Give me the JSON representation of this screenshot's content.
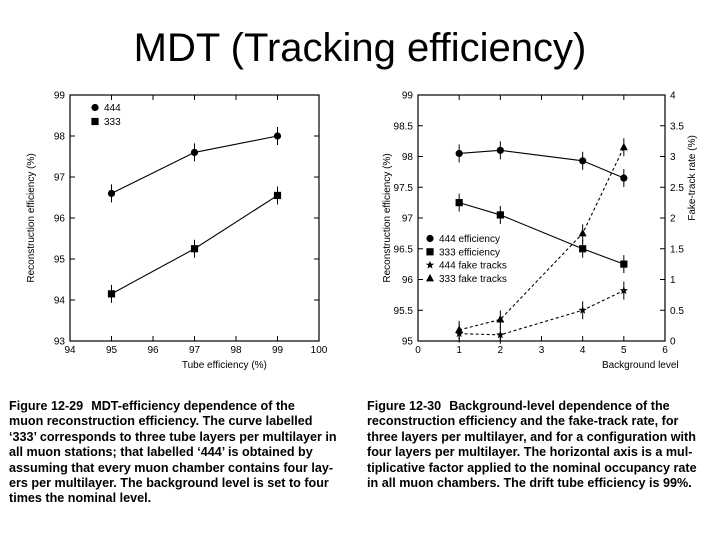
{
  "slide": {
    "title": "MDT (Tracking efficiency)"
  },
  "chart_data": [
    {
      "type": "line",
      "xlabel": "Tube efficiency (%)",
      "ylabel": "Reconstruction efficiency (%)",
      "xlim": [
        94,
        100
      ],
      "ylim": [
        93,
        99
      ],
      "xticks": [
        94,
        95,
        96,
        97,
        98,
        99,
        100
      ],
      "yticks": [
        93,
        94,
        95,
        96,
        97,
        98,
        99
      ],
      "legend_position": "top-left",
      "series": [
        {
          "name": "444",
          "marker": "circle",
          "x": [
            95,
            97,
            99
          ],
          "values": [
            96.6,
            97.6,
            98.0
          ]
        },
        {
          "name": "333",
          "marker": "square",
          "x": [
            95,
            97,
            99
          ],
          "values": [
            94.15,
            95.25,
            96.55
          ]
        }
      ]
    },
    {
      "type": "line",
      "xlabel": "Background level",
      "ylabel": "Reconstruction efficiency (%)",
      "y2label": "Fake-track rate (%)",
      "xlim": [
        0,
        6
      ],
      "ylim": [
        95,
        99
      ],
      "y2lim": [
        0,
        4
      ],
      "xticks": [
        0,
        1,
        2,
        3,
        4,
        5,
        6
      ],
      "yticks": [
        95,
        95.5,
        96,
        96.5,
        97,
        97.5,
        98,
        98.5,
        99
      ],
      "y2ticks": [
        0,
        0.5,
        1,
        1.5,
        2,
        2.5,
        3,
        3.5,
        4
      ],
      "legend_position": "center-left",
      "series": [
        {
          "name": "444 efficiency",
          "axis": "left",
          "marker": "circle",
          "style": "solid",
          "x": [
            1,
            2,
            4,
            5
          ],
          "values": [
            98.05,
            98.1,
            97.93,
            97.65
          ]
        },
        {
          "name": "333 efficiency",
          "axis": "left",
          "marker": "square",
          "style": "solid",
          "x": [
            1,
            2,
            4,
            5
          ],
          "values": [
            97.25,
            97.05,
            96.5,
            96.25
          ]
        },
        {
          "name": "444 fake tracks",
          "axis": "right",
          "marker": "star",
          "style": "dashed",
          "x": [
            1,
            2,
            4,
            5
          ],
          "values": [
            0.12,
            0.1,
            0.5,
            0.82
          ]
        },
        {
          "name": "333 fake tracks",
          "axis": "right",
          "marker": "triangle",
          "style": "dashed",
          "x": [
            1,
            2,
            4,
            5
          ],
          "values": [
            0.18,
            0.35,
            1.75,
            3.15
          ]
        }
      ]
    }
  ],
  "captions": {
    "left": {
      "label": "Figure 12-29",
      "lines": [
        "MDT-efficiency dependence of the",
        "muon reconstruction efficiency. The curve labelled",
        "‘333’ corresponds to three tube layers per multilayer in",
        "all muon stations; that labelled ‘444’ is obtained by",
        "assuming that every muon chamber contains four lay-",
        "ers per multilayer. The background level is set to four",
        "times the nominal level."
      ]
    },
    "right": {
      "label": "Figure 12-30",
      "lines": [
        "Background-level dependence of the",
        "reconstruction efficiency and the fake-track rate, for",
        "three layers per multilayer, and for a configuration with",
        "four layers per multilayer. The horizontal axis is a mul-",
        "tiplicative factor applied to the nominal occupancy rate",
        "in all muon chambers. The drift tube efficiency is 99%."
      ]
    }
  }
}
